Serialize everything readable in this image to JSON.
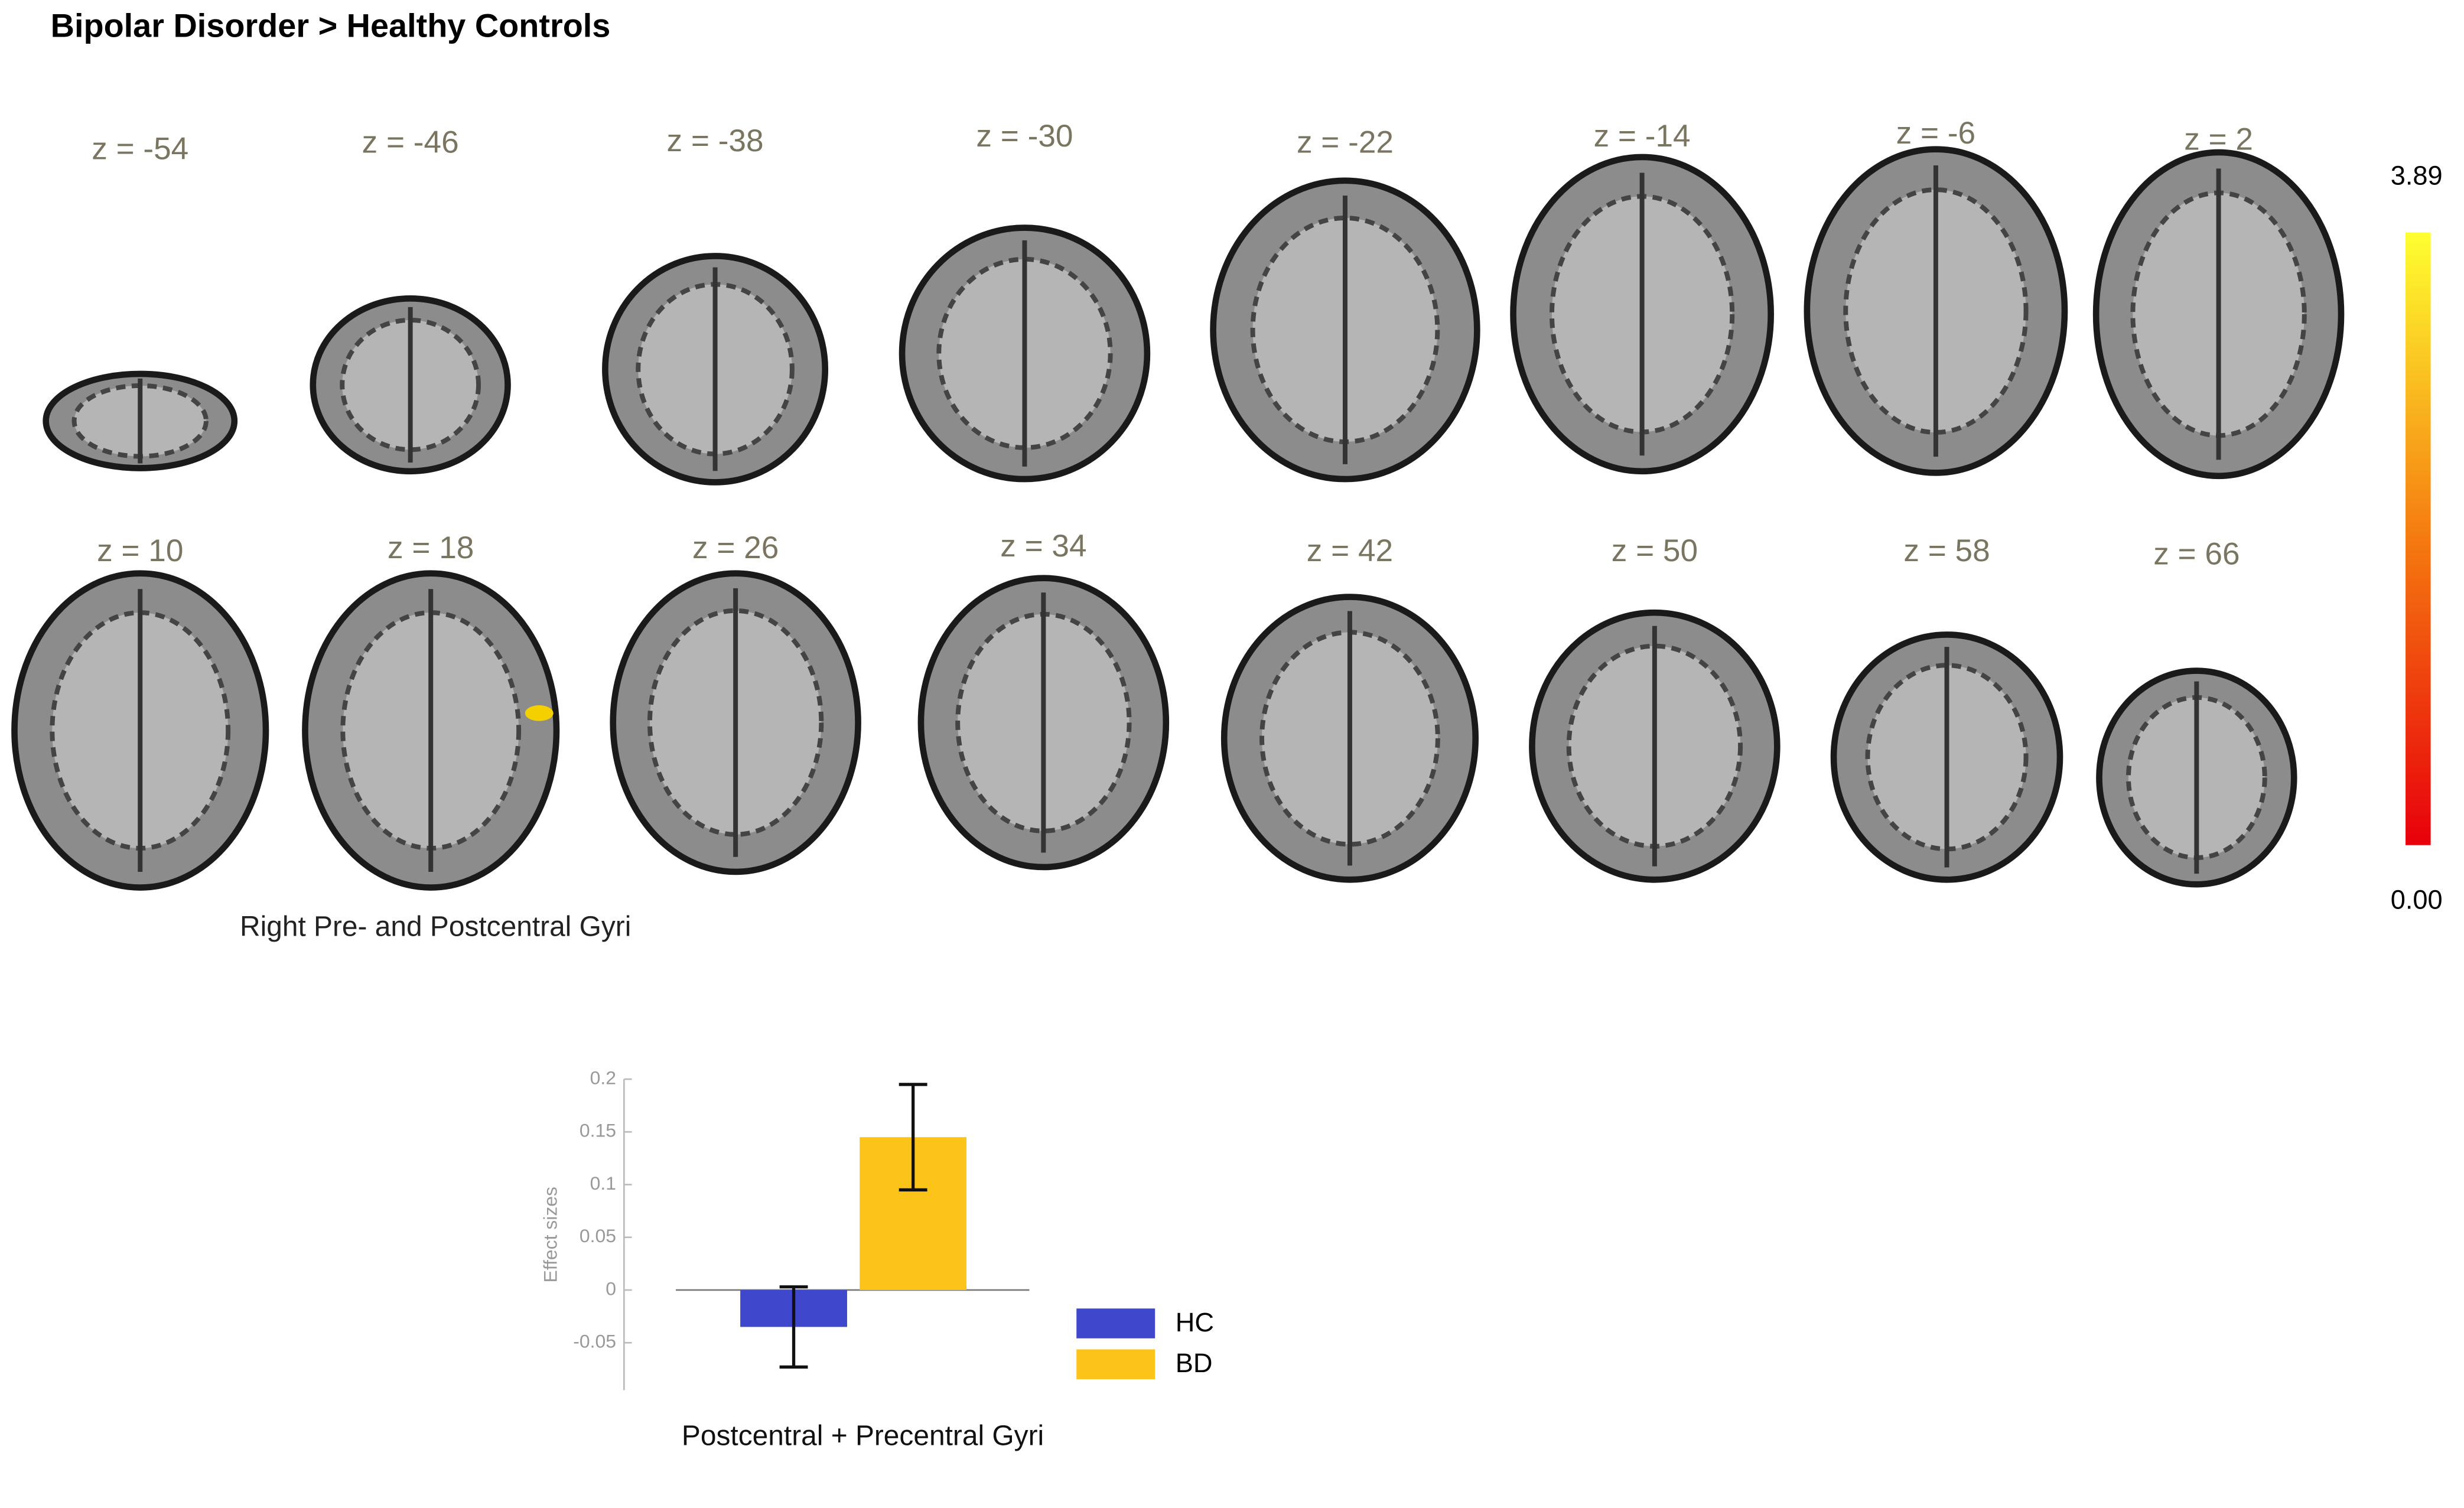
{
  "title": "Bipolar Disorder > Healthy Controls",
  "slices": [
    "z = -54",
    "z = -46",
    "z = -38",
    "z = -30",
    "z = -22",
    "z = -14",
    "z = -6",
    "z = 2",
    "z = 10",
    "z = 18",
    "z = 26",
    "z = 34",
    "z = 42",
    "z = 50",
    "z = 58",
    "z = 66"
  ],
  "colorbar": {
    "max": 3.89,
    "min": {
      "value": 0,
      "label": "0.00"
    }
  },
  "annotation": "Right Pre- and Postcentral Gyri",
  "chart_data": {
    "type": "bar",
    "ylabel": "Effect sizes",
    "categories": [
      "Postcentral + Precentral Gyri"
    ],
    "series": [
      {
        "name": "HC",
        "color": "#3f48cc",
        "values": [
          -0.035
        ],
        "errors": [
          0.038
        ]
      },
      {
        "name": "BD",
        "color": "#fcc419",
        "values": [
          0.145
        ],
        "errors": [
          0.05
        ]
      }
    ],
    "ylim": [
      -0.095,
      0.2
    ],
    "yticks": [
      -0.05,
      0,
      0.05,
      0.1,
      0.15,
      0.2
    ]
  }
}
